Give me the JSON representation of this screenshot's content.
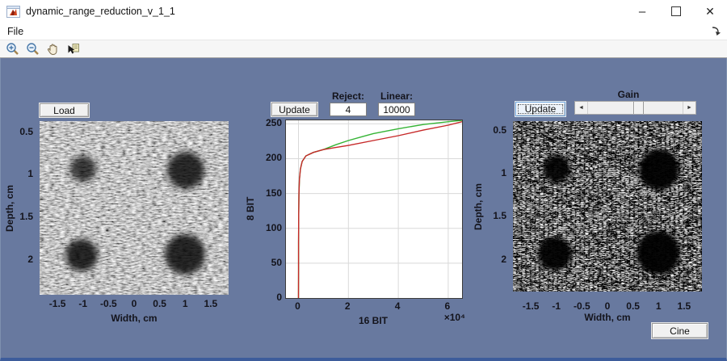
{
  "window": {
    "title": "dynamic_range_reduction_v_1_1",
    "minimize_glyph": "–",
    "close_glyph": "✕"
  },
  "menu_bar": {
    "file_label": "File"
  },
  "toolbar": {
    "icons": [
      "zoom-in",
      "zoom-out",
      "pan",
      "data-cursor"
    ]
  },
  "left_panel": {
    "load_button": "Load",
    "xlabel": "Width, cm",
    "ylabel": "Depth, cm",
    "axis": {
      "xlim": [
        -1.85,
        1.85
      ],
      "ylim": [
        0.38,
        2.42
      ],
      "xticks": [
        -1.5,
        -1,
        -0.5,
        0,
        0.5,
        1,
        1.5
      ],
      "yticks": [
        0.5,
        1,
        1.5,
        2
      ]
    }
  },
  "middle_panel": {
    "update_button": "Update",
    "reject_label": "Reject:",
    "reject_value": "4",
    "linear_label": "Linear:",
    "linear_value": "10000"
  },
  "right_panel": {
    "update_button": "Update",
    "gain_label": "Gain",
    "cine_button": "Cine",
    "xlabel": "Width, cm",
    "ylabel": "Depth, cm",
    "gain_slider": {
      "thumb_percent": 53
    },
    "axis": {
      "xlim": [
        -1.85,
        1.85
      ],
      "ylim": [
        0.4,
        2.38
      ],
      "xticks": [
        -1.5,
        -1,
        -0.5,
        0,
        0.5,
        1,
        1.5
      ],
      "yticks": [
        0.5,
        1,
        1.5,
        2
      ]
    }
  },
  "chart_data": {
    "type": "line",
    "title": "",
    "xlabel": "16 BIT",
    "ylabel": "8 BIT",
    "x_exponent_label": "×10⁴",
    "xlim": [
      -5000,
      65535
    ],
    "ylim": [
      0,
      255
    ],
    "xticks": [
      0,
      20000,
      40000,
      60000
    ],
    "xtick_labels": [
      "0",
      "2",
      "4",
      "6"
    ],
    "yticks": [
      0,
      50,
      100,
      150,
      200,
      250
    ],
    "grid": true,
    "grid_color": "#d9d9d9",
    "legend": "none",
    "series": [
      {
        "name": "gain-adjusted-curve-green",
        "color": "#35b435",
        "x": [
          30,
          40,
          60,
          100,
          200,
          400,
          800,
          1500,
          3000,
          6000,
          10000,
          15000,
          20000,
          25000,
          30000,
          40000,
          50000,
          60000,
          65535
        ],
        "y": [
          0,
          40,
          80,
          120,
          150,
          170,
          185,
          196,
          204,
          209,
          213,
          220,
          226,
          231,
          236,
          243,
          249,
          253,
          255
        ]
      },
      {
        "name": "compression-curve-red",
        "color": "#c62828",
        "x": [
          30,
          40,
          60,
          100,
          200,
          400,
          800,
          1500,
          3000,
          6000,
          10000,
          15000,
          20000,
          30000,
          40000,
          50000,
          60000,
          65535
        ],
        "y": [
          0,
          40,
          80,
          120,
          150,
          170,
          185,
          196,
          204,
          209,
          213,
          216,
          219,
          226,
          233,
          241,
          248,
          253
        ]
      }
    ]
  },
  "colors": {
    "figure_background": "#68799F",
    "window_bottom_border": "#3D5C9B",
    "toolbar_background": "#f6f6f6",
    "tick_text": "#14141c"
  }
}
